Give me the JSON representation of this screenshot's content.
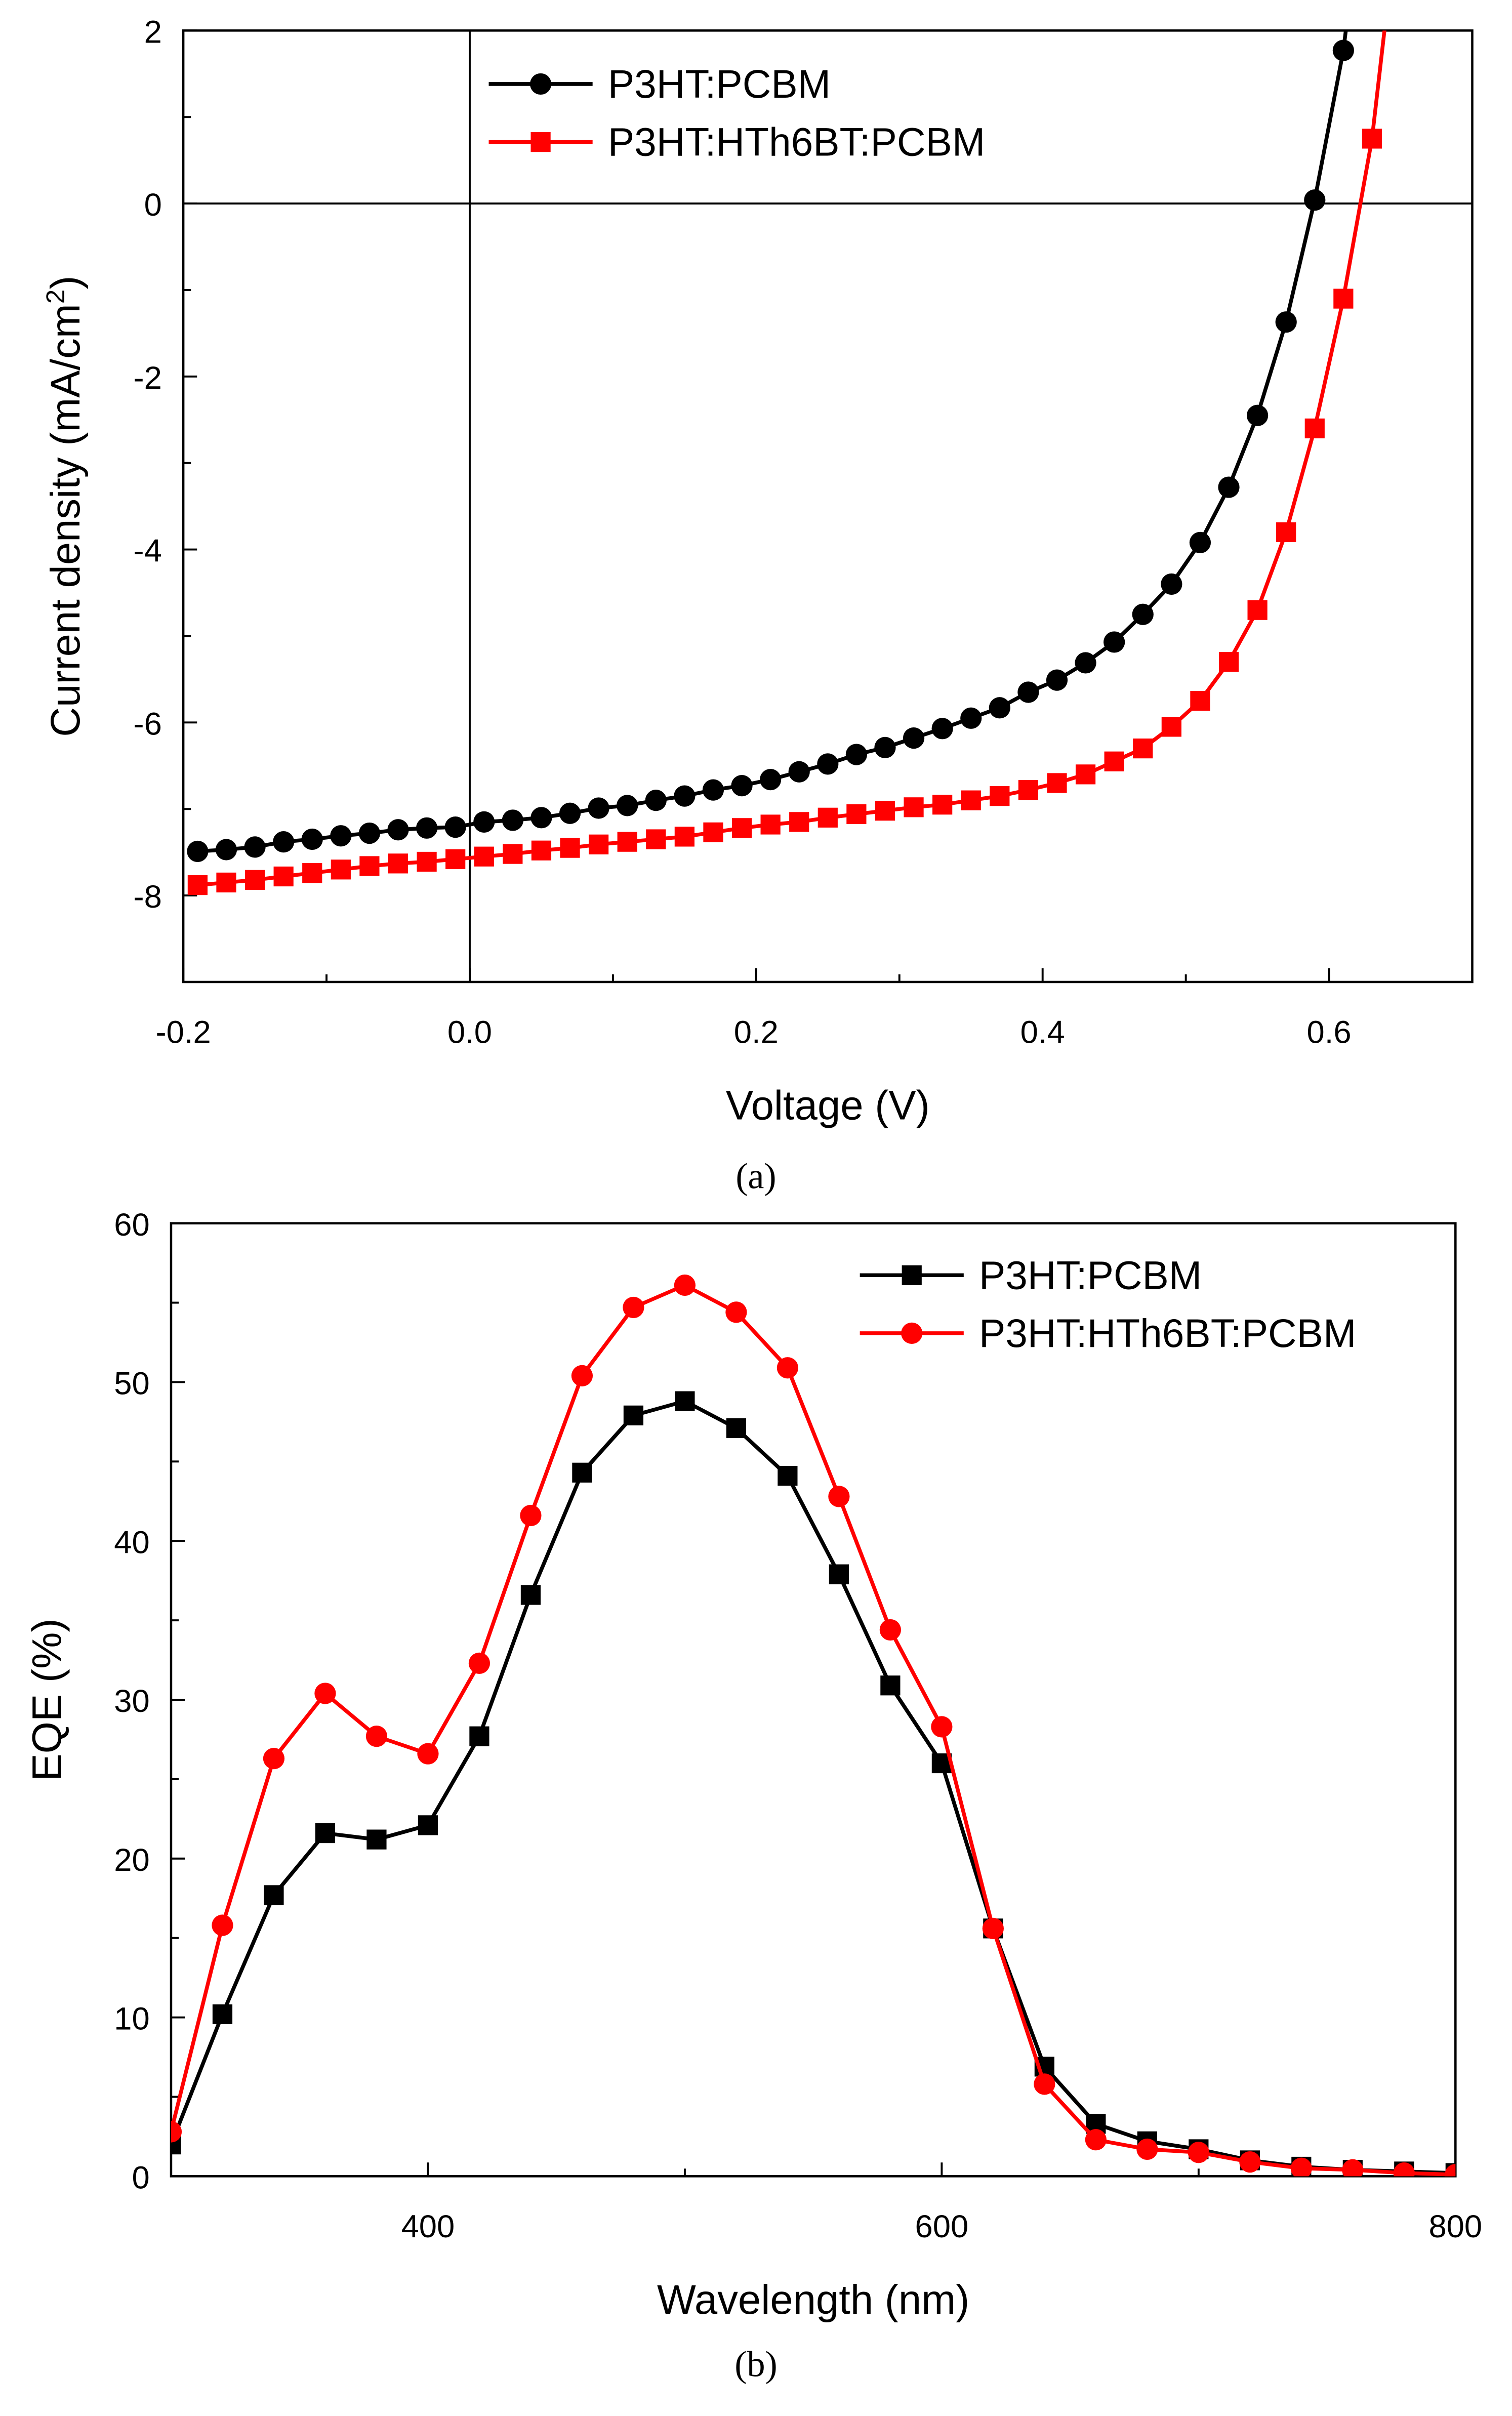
{
  "chart_data": [
    {
      "type": "line",
      "caption": "(a)",
      "xlabel": "Voltage (V)",
      "ylabel": "Current density (mA/cm",
      "ylabel_sup": "2",
      "ylabel_end": ")",
      "xlim": [
        -0.2,
        0.7
      ],
      "ylim": [
        -9,
        2
      ],
      "xticks": [
        -0.2,
        0.0,
        0.2,
        0.4,
        0.6
      ],
      "xtick_labels": [
        "-0.2",
        "0.0",
        "0.2",
        "0.4",
        "0.6"
      ],
      "yticks": [
        -8,
        -6,
        -4,
        -2,
        0,
        2
      ],
      "ytick_labels": [
        "-8",
        "-6",
        "-4",
        "-2",
        "0",
        "2"
      ],
      "legend_position": "top-center",
      "series": [
        {
          "name": "P3HT:PCBM",
          "color": "#000000",
          "marker": "circle",
          "x0": -0.19,
          "dx": 0.02,
          "values": [
            -7.49,
            -7.47,
            -7.44,
            -7.38,
            -7.35,
            -7.31,
            -7.28,
            -7.24,
            -7.22,
            -7.21,
            -7.15,
            -7.13,
            -7.1,
            -7.05,
            -6.99,
            -6.96,
            -6.9,
            -6.85,
            -6.78,
            -6.73,
            -6.66,
            -6.57,
            -6.48,
            -6.37,
            -6.29,
            -6.18,
            -6.07,
            -5.95,
            -5.83,
            -5.65,
            -5.51,
            -5.31,
            -5.07,
            -4.75,
            -4.4,
            -3.92,
            -3.28,
            -2.45,
            -1.37,
            0.04,
            1.77
          ]
        },
        {
          "name": "P3HT:HTh6BT:PCBM",
          "color": "#ff0000",
          "marker": "square",
          "x0": -0.19,
          "dx": 0.02,
          "values": [
            -7.88,
            -7.85,
            -7.82,
            -7.78,
            -7.74,
            -7.7,
            -7.66,
            -7.63,
            -7.61,
            -7.58,
            -7.55,
            -7.52,
            -7.48,
            -7.45,
            -7.41,
            -7.38,
            -7.35,
            -7.32,
            -7.27,
            -7.22,
            -7.18,
            -7.15,
            -7.1,
            -7.06,
            -7.02,
            -6.98,
            -6.95,
            -6.9,
            -6.85,
            -6.78,
            -6.7,
            -6.6,
            -6.45,
            -6.3,
            -6.05,
            -5.75,
            -5.3,
            -4.7,
            -3.8,
            -2.6,
            -1.1,
            0.75
          ]
        }
      ]
    },
    {
      "type": "line",
      "caption": "(b)",
      "xlabel": "Wavelength (nm)",
      "ylabel": "EQE (%)",
      "xlim": [
        300,
        800
      ],
      "ylim": [
        0,
        60
      ],
      "xticks": [
        400,
        600,
        800
      ],
      "xtick_labels": [
        "400",
        "600",
        "800"
      ],
      "yticks": [
        0,
        10,
        20,
        30,
        40,
        50,
        60
      ],
      "ytick_labels": [
        "0",
        "10",
        "20",
        "30",
        "40",
        "50",
        "60"
      ],
      "legend_position": "top-right",
      "series": [
        {
          "name": "P3HT:PCBM",
          "color": "#000000",
          "marker": "square",
          "x0": 300,
          "dx": 20,
          "values": [
            2.0,
            10.2,
            17.7,
            21.6,
            21.2,
            22.1,
            27.7,
            36.6,
            44.3,
            47.9,
            48.8,
            47.1,
            44.1,
            37.9,
            30.9,
            26.0,
            15.6,
            6.9,
            3.3,
            2.2,
            1.7,
            1.0,
            0.6,
            0.4,
            0.3,
            0.2
          ]
        },
        {
          "name": "P3HT:HTh6BT:PCBM",
          "color": "#ff0000",
          "marker": "circle",
          "x0": 300,
          "dx": 20,
          "values": [
            2.8,
            15.8,
            26.3,
            30.4,
            27.7,
            26.6,
            32.3,
            41.6,
            50.4,
            54.7,
            56.1,
            54.4,
            50.9,
            42.8,
            34.4,
            28.3,
            15.6,
            5.8,
            2.3,
            1.7,
            1.5,
            0.9,
            0.5,
            0.4,
            0.2,
            0.1
          ]
        }
      ]
    }
  ]
}
